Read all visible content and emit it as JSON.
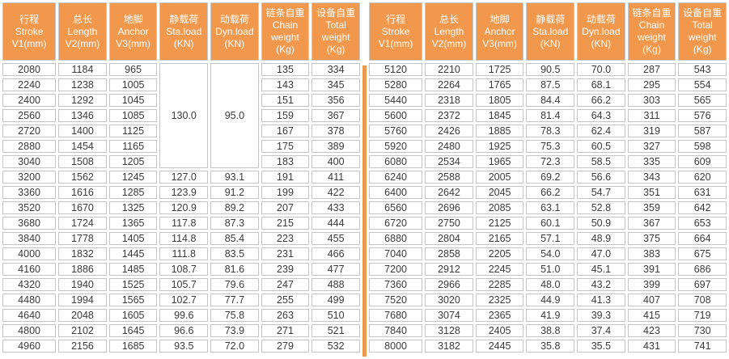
{
  "colors": {
    "header_bg": "#F2984C",
    "divider": "#F2984C",
    "cell_border": "#C5C5C5",
    "text": "#3A3A3A",
    "header_text": "#FFFFFF"
  },
  "table": {
    "columns": [
      {
        "lines": [
          "行程",
          "Stroke",
          "V1(mm)"
        ]
      },
      {
        "lines": [
          "总长",
          "Length",
          "V2(mm)"
        ]
      },
      {
        "lines": [
          "地脚",
          "Anchor",
          "V3(mm)"
        ]
      },
      {
        "lines": [
          "静载荷",
          "Sta.load",
          "(KN)"
        ]
      },
      {
        "lines": [
          "动载荷",
          "Dyn.load",
          "(KN)"
        ]
      },
      {
        "lines": [
          "链条自重",
          "Chain",
          "weight",
          "(Kg)"
        ]
      },
      {
        "lines": [
          "设备自重",
          "Total",
          "weight",
          "(Kg)"
        ]
      }
    ],
    "left": {
      "merged": {
        "row_span": 7,
        "cells": {
          "3": "130.0",
          "4": "95.0"
        }
      },
      "rows": [
        [
          "2080",
          "1184",
          "965",
          null,
          null,
          "135",
          "334"
        ],
        [
          "2240",
          "1238",
          "1005",
          null,
          null,
          "143",
          "345"
        ],
        [
          "2400",
          "1292",
          "1045",
          null,
          null,
          "151",
          "356"
        ],
        [
          "2560",
          "1346",
          "1085",
          null,
          null,
          "159",
          "367"
        ],
        [
          "2720",
          "1400",
          "1125",
          null,
          null,
          "167",
          "378"
        ],
        [
          "2880",
          "1454",
          "1165",
          null,
          null,
          "175",
          "389"
        ],
        [
          "3040",
          "1508",
          "1205",
          null,
          null,
          "183",
          "400"
        ],
        [
          "3200",
          "1562",
          "1245",
          "127.0",
          "93.1",
          "191",
          "411"
        ],
        [
          "3360",
          "1616",
          "1285",
          "123.9",
          "91.2",
          "199",
          "422"
        ],
        [
          "3520",
          "1670",
          "1325",
          "120.9",
          "89.2",
          "207",
          "433"
        ],
        [
          "3680",
          "1724",
          "1365",
          "117.8",
          "87.3",
          "215",
          "444"
        ],
        [
          "3840",
          "1778",
          "1405",
          "114.8",
          "85.4",
          "223",
          "455"
        ],
        [
          "4000",
          "1832",
          "1445",
          "111.8",
          "83.5",
          "231",
          "466"
        ],
        [
          "4160",
          "1886",
          "1485",
          "108.7",
          "81.6",
          "239",
          "477"
        ],
        [
          "4320",
          "1940",
          "1525",
          "105.7",
          "79.6",
          "247",
          "488"
        ],
        [
          "4480",
          "1994",
          "1565",
          "102.7",
          "77.7",
          "255",
          "499"
        ],
        [
          "4640",
          "2048",
          "1605",
          "99.6",
          "75.8",
          "263",
          "510"
        ],
        [
          "4800",
          "2102",
          "1645",
          "96.6",
          "73.9",
          "271",
          "521"
        ],
        [
          "4960",
          "2156",
          "1685",
          "93.5",
          "72.0",
          "279",
          "532"
        ]
      ]
    },
    "right": {
      "rows": [
        [
          "5120",
          "2210",
          "1725",
          "90.5",
          "70.0",
          "287",
          "543"
        ],
        [
          "5280",
          "2264",
          "1765",
          "87.5",
          "68.1",
          "295",
          "554"
        ],
        [
          "5440",
          "2318",
          "1805",
          "84.4",
          "66.2",
          "303",
          "565"
        ],
        [
          "5600",
          "2372",
          "1845",
          "81.4",
          "64.3",
          "311",
          "576"
        ],
        [
          "5760",
          "2426",
          "1885",
          "78.3",
          "62.4",
          "319",
          "587"
        ],
        [
          "5920",
          "2480",
          "1925",
          "75.3",
          "60.5",
          "327",
          "598"
        ],
        [
          "6080",
          "2534",
          "1965",
          "72.3",
          "58.5",
          "335",
          "609"
        ],
        [
          "6240",
          "2588",
          "2005",
          "69.2",
          "56.6",
          "343",
          "620"
        ],
        [
          "6400",
          "2642",
          "2045",
          "66.2",
          "54.7",
          "351",
          "631"
        ],
        [
          "6560",
          "2696",
          "2085",
          "63.1",
          "52.8",
          "359",
          "642"
        ],
        [
          "6720",
          "2750",
          "2125",
          "60.1",
          "50.9",
          "367",
          "653"
        ],
        [
          "6880",
          "2804",
          "2165",
          "57.1",
          "48.9",
          "375",
          "664"
        ],
        [
          "7040",
          "2858",
          "2205",
          "54.0",
          "47.0",
          "383",
          "675"
        ],
        [
          "7200",
          "2912",
          "2245",
          "51.0",
          "45.1",
          "391",
          "686"
        ],
        [
          "7360",
          "2966",
          "2285",
          "48.0",
          "43.2",
          "399",
          "697"
        ],
        [
          "7520",
          "3020",
          "2325",
          "44.9",
          "41.3",
          "407",
          "708"
        ],
        [
          "7680",
          "3074",
          "2365",
          "41.9",
          "39.3",
          "415",
          "719"
        ],
        [
          "7840",
          "3128",
          "2405",
          "38.8",
          "37.4",
          "423",
          "730"
        ],
        [
          "8000",
          "3182",
          "2445",
          "35.8",
          "35.5",
          "431",
          "741"
        ]
      ]
    }
  }
}
